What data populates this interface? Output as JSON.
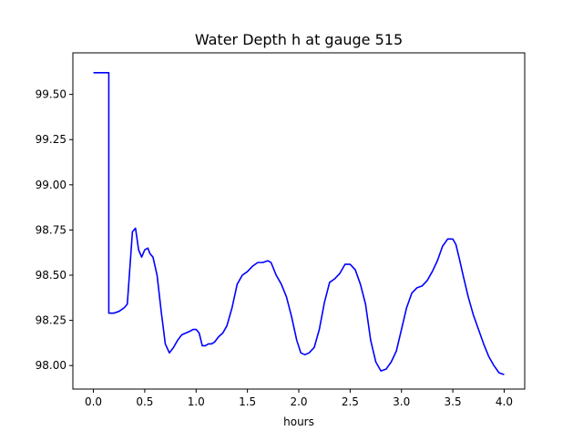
{
  "chart_data": {
    "type": "line",
    "title": "Water Depth h at gauge 515",
    "xlabel": "hours",
    "ylabel": "",
    "xlim": [
      -0.2,
      4.2
    ],
    "ylim": [
      97.87,
      99.73
    ],
    "xticks": [
      0.0,
      0.5,
      1.0,
      1.5,
      2.0,
      2.5,
      3.0,
      3.5,
      4.0
    ],
    "xtick_labels": [
      "0.0",
      "0.5",
      "1.0",
      "1.5",
      "2.0",
      "2.5",
      "3.0",
      "3.5",
      "4.0"
    ],
    "yticks": [
      98.0,
      98.25,
      98.5,
      98.75,
      99.0,
      99.25,
      99.5
    ],
    "ytick_labels": [
      "98.00",
      "98.25",
      "98.50",
      "98.75",
      "99.00",
      "99.25",
      "99.50"
    ],
    "grid": false,
    "series": [
      {
        "color": "#0000ff",
        "x": [
          0.0,
          0.15,
          0.15,
          0.2,
          0.25,
          0.3,
          0.33,
          0.35,
          0.38,
          0.41,
          0.44,
          0.47,
          0.5,
          0.53,
          0.55,
          0.58,
          0.62,
          0.66,
          0.7,
          0.74,
          0.78,
          0.82,
          0.86,
          0.9,
          0.94,
          0.97,
          1.0,
          1.03,
          1.06,
          1.09,
          1.12,
          1.15,
          1.18,
          1.22,
          1.26,
          1.3,
          1.35,
          1.4,
          1.45,
          1.5,
          1.55,
          1.6,
          1.65,
          1.7,
          1.73,
          1.78,
          1.83,
          1.88,
          1.93,
          1.98,
          2.02,
          2.06,
          2.1,
          2.15,
          2.2,
          2.25,
          2.3,
          2.35,
          2.4,
          2.45,
          2.5,
          2.55,
          2.6,
          2.65,
          2.7,
          2.75,
          2.8,
          2.85,
          2.9,
          2.95,
          3.0,
          3.05,
          3.1,
          3.15,
          3.2,
          3.25,
          3.3,
          3.35,
          3.4,
          3.45,
          3.5,
          3.53,
          3.56,
          3.6,
          3.65,
          3.7,
          3.75,
          3.8,
          3.85,
          3.9,
          3.95,
          4.0
        ],
        "y": [
          99.62,
          99.62,
          98.29,
          98.29,
          98.3,
          98.32,
          98.34,
          98.5,
          98.74,
          98.76,
          98.64,
          98.6,
          98.64,
          98.65,
          98.62,
          98.6,
          98.5,
          98.3,
          98.12,
          98.07,
          98.1,
          98.14,
          98.17,
          98.18,
          98.19,
          98.2,
          98.2,
          98.18,
          98.11,
          98.11,
          98.12,
          98.12,
          98.13,
          98.16,
          98.18,
          98.22,
          98.32,
          98.45,
          98.5,
          98.52,
          98.55,
          98.57,
          98.57,
          98.58,
          98.57,
          98.5,
          98.45,
          98.38,
          98.27,
          98.14,
          98.07,
          98.06,
          98.07,
          98.1,
          98.2,
          98.35,
          98.46,
          98.48,
          98.51,
          98.56,
          98.56,
          98.53,
          98.45,
          98.34,
          98.14,
          98.02,
          97.97,
          97.98,
          98.02,
          98.08,
          98.2,
          98.32,
          98.4,
          98.43,
          98.44,
          98.47,
          98.52,
          98.58,
          98.66,
          98.7,
          98.7,
          98.67,
          98.6,
          98.5,
          98.38,
          98.28,
          98.2,
          98.12,
          98.05,
          98.0,
          97.96,
          97.95
        ]
      }
    ]
  }
}
